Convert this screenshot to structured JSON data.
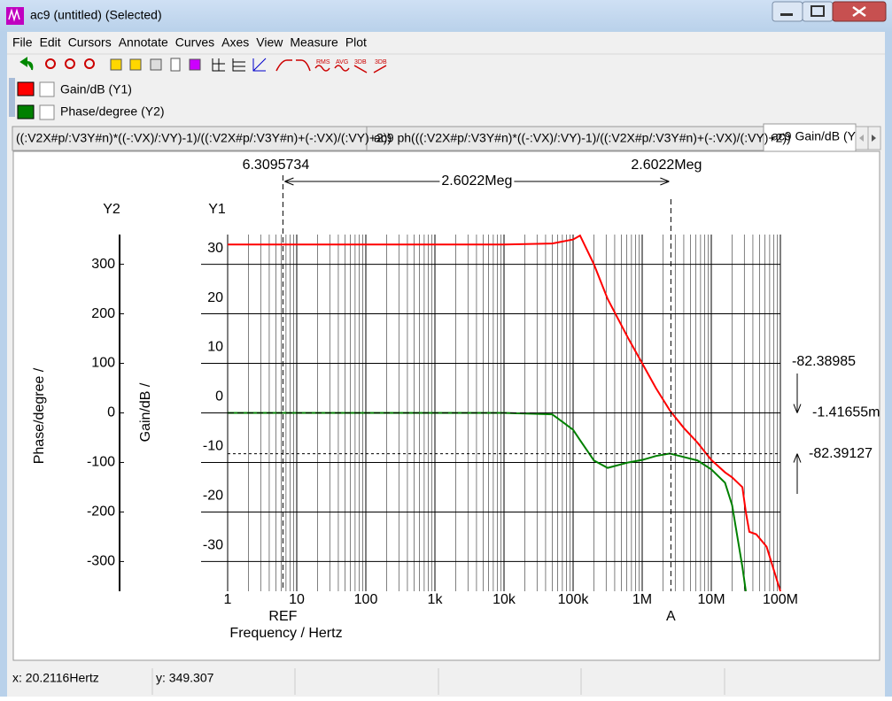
{
  "window": {
    "title": "ac9 (untitled) (Selected)"
  },
  "menu": [
    "File",
    "Edit",
    "Cursors",
    "Annotate",
    "Curves",
    "Axes",
    "View",
    "Measure",
    "Plot"
  ],
  "toolbar": {
    "labels": [
      "RMS",
      "AVG",
      "3DB",
      "3DB"
    ]
  },
  "tabs": [
    "((:V2X#p/:V3Y#n)*((-:VX)/:VY)-1)/((:V2X#p/:V3Y#n)+(-:VX)/(:VY)+2))",
    "ac9 ph(((:V2X#p/:V3Y#n)*((-:VX)/:VY)-1)/((:V2X#p/:V3Y#n)+(-:VX)/(:VY)+2))",
    "ac9 Gain/dB (Y"
  ],
  "chart_data": {
    "type": "line",
    "x_label": "Frequency / Hertz",
    "y_label": "Gain/dB /",
    "y2_label": "Phase/degree /",
    "y_axis_name": "Y1",
    "y2_axis_name": "Y2",
    "x_scale": "log",
    "grid": true,
    "minor_grid": true,
    "x": [
      1,
      10,
      100,
      1000,
      10000,
      50000,
      100000,
      126000,
      200000,
      316000,
      631000,
      1000000,
      1580000,
      2510000,
      3980000,
      6310000,
      10000000,
      15800000,
      20000000,
      28200000,
      31600000,
      35500000,
      44700000,
      63100000,
      100000000
    ],
    "series": [
      {
        "name": "Gain/dB (Y1)",
        "color": "#ff0000",
        "axis": "y",
        "values": [
          34,
          34,
          34,
          34,
          34,
          34.2,
          35,
          35.8,
          30,
          23,
          15,
          10,
          5,
          0.5,
          -3,
          -6,
          -9.5,
          -12,
          -13,
          -15,
          -20,
          -24,
          -24.5,
          -27,
          -36
        ]
      },
      {
        "name": "Phase/degree (Y2)",
        "color": "#008000",
        "axis": "y2",
        "values": [
          0,
          0,
          0,
          0,
          0,
          -3,
          -34,
          -55,
          -96,
          -111,
          -100,
          -95,
          -87,
          -82,
          -89,
          -96,
          -114,
          -141,
          -186,
          -311,
          -360,
          null,
          null,
          null,
          null
        ]
      }
    ],
    "xlim": [
      1,
      100000000
    ],
    "xticks": [
      1,
      10,
      100,
      {
        "value": 1000,
        "label": "1k"
      },
      {
        "value": 10000,
        "label": "10k"
      },
      {
        "value": 100000,
        "label": "100k"
      },
      {
        "value": 1000000,
        "label": "1M"
      },
      {
        "value": 10000000,
        "label": "10M"
      },
      {
        "value": 100000000,
        "label": "100M"
      }
    ],
    "ylim": [
      -36,
      36
    ],
    "yticks": [
      -30,
      -20,
      -10,
      0,
      10,
      20,
      30
    ],
    "y2lim": [
      -360,
      360
    ],
    "y2ticks": [
      -300,
      -200,
      -100,
      0,
      100,
      200,
      300
    ],
    "cursors": [
      {
        "label": "REF",
        "x": 6.3095734
      },
      {
        "label": "A",
        "x": {
          "value": 2602200,
          "label": "2.6022Meg"
        }
      }
    ],
    "delta_x": {
      "value": 2602200,
      "label": "2.6022Meg"
    },
    "delta_y": -82.38985,
    "a_gain": {
      "value": -0.00141655,
      "label": "-1.41655m"
    },
    "a_phase": -82.39127
  },
  "status": [
    "x: 20.2116Hertz",
    "y: 349.307"
  ]
}
